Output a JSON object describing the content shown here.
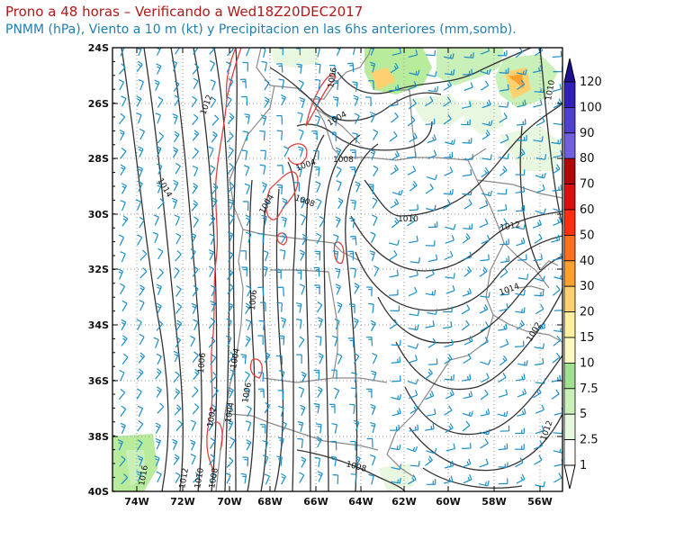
{
  "title": "Prono a 48 horas – Verificando a Wed18Z20DEC2017",
  "subtitle": "PNMM (hPa), Viento a 10 m (kt) y Precipitacion en las 6hs anteriores (mm,somb).",
  "axes": {
    "lat_labels": [
      "24S",
      "26S",
      "28S",
      "30S",
      "32S",
      "34S",
      "36S",
      "38S",
      "40S"
    ],
    "lon_labels": [
      "74W",
      "72W",
      "70W",
      "68W",
      "66W",
      "64W",
      "62W",
      "60W",
      "58W",
      "56W"
    ]
  },
  "colorbar": {
    "labels": [
      "1",
      "2.5",
      "5",
      "7.5",
      "10",
      "15",
      "20",
      "30",
      "40",
      "50",
      "60",
      "70",
      "80",
      "90",
      "100",
      "120"
    ],
    "colors": [
      "#ffffff",
      "#e8f8e0",
      "#c8f0b8",
      "#a0e090",
      "#fff8c0",
      "#fff0a0",
      "#ffd070",
      "#ffa030",
      "#ff7020",
      "#ff3010",
      "#d81010",
      "#b00808",
      "#7060e0",
      "#5040d0",
      "#3020b8",
      "#201090"
    ]
  },
  "isobar_labels": [
    "1012",
    "1014",
    "1016",
    "1012",
    "1010",
    "1008",
    "1006",
    "1004",
    "1002",
    "1004",
    "1006",
    "1006",
    "1004",
    "1004",
    "1008",
    "1006",
    "1004",
    "1008",
    "1010",
    "1012",
    "1014",
    "1002",
    "1008",
    "1010",
    "1012",
    "1016"
  ],
  "colors": {
    "isobar": "#333333",
    "isobar_red": "#e04040",
    "wind": "#1a8ec8",
    "border": "#8a8a8a",
    "grid": "#999999",
    "frame": "#000000"
  }
}
